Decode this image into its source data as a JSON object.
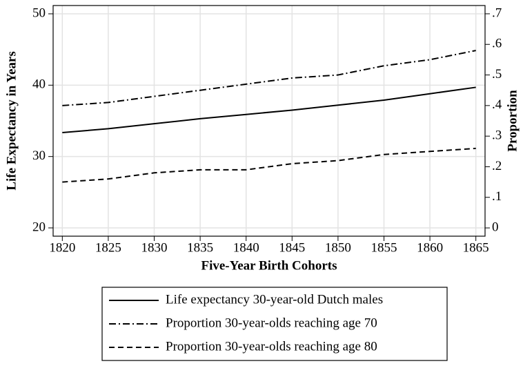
{
  "chart_data": {
    "type": "line",
    "x": [
      1820,
      1825,
      1830,
      1835,
      1840,
      1845,
      1850,
      1855,
      1860,
      1865
    ],
    "xlim": [
      1819,
      1866
    ],
    "xticks": [
      1820,
      1825,
      1830,
      1835,
      1840,
      1845,
      1850,
      1855,
      1860,
      1865
    ],
    "xlabel": "Five-Year Birth Cohorts",
    "ylabel": "Life Expectancy in Years",
    "y2label": "Proportion",
    "ylim": [
      18.84,
      51.16
    ],
    "yticks": [
      20,
      30,
      40,
      50
    ],
    "y2lim": [
      -0.027,
      0.727
    ],
    "y2ticks": [
      0,
      {
        "value": 0.1,
        "label": ".1"
      },
      {
        "value": 0.2,
        "label": ".2"
      },
      {
        "value": 0.3,
        "label": ".3"
      },
      {
        "value": 0.4,
        "label": ".4"
      },
      {
        "value": 0.5,
        "label": ".5"
      },
      {
        "value": 0.6,
        "label": ".6"
      },
      {
        "value": 0.7,
        "label": ".7"
      }
    ],
    "grid": true,
    "legend": "bottom",
    "series": [
      {
        "name": "Life expectancy 30-year-old Dutch males",
        "color": "#000000",
        "style": "solid",
        "values": [
          33.35,
          33.9,
          34.6,
          35.3,
          35.9,
          36.5,
          37.2,
          37.9,
          38.8,
          39.7
        ]
      },
      {
        "name": "Proportion 30-year-olds reaching age 70",
        "color": "#000000",
        "style": "dashdot",
        "axis": "y2",
        "values": [
          0.4,
          0.41,
          0.43,
          0.45,
          0.47,
          0.49,
          0.5,
          0.53,
          0.55,
          0.58
        ]
      },
      {
        "name": "Proportion 30-year-olds reaching age 80",
        "color": "#000000",
        "style": "dashed",
        "axis": "y2",
        "values": [
          0.15,
          0.16,
          0.18,
          0.19,
          0.19,
          0.21,
          0.22,
          0.24,
          0.25,
          0.26
        ]
      }
    ]
  }
}
